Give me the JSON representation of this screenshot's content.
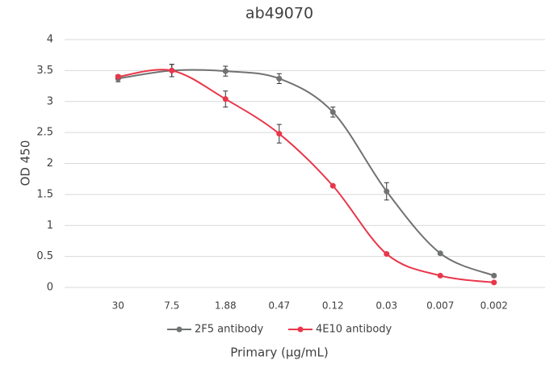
{
  "chart_data": {
    "type": "line",
    "title": "ab49070",
    "x_label": "Primary (µg/mL)",
    "y_label": "OD 450",
    "categories": [
      "30",
      "7.5",
      "1.88",
      "0.47",
      "0.12",
      "0.03",
      "0.007",
      "0.002"
    ],
    "series": [
      {
        "name": "2F5 antibody",
        "color": "#707372",
        "values": [
          3.37,
          3.5,
          3.49,
          3.37,
          2.83,
          1.55,
          0.55,
          0.19
        ],
        "errors": [
          0.05,
          0.1,
          0.08,
          0.08,
          0.08,
          0.14,
          0.02,
          0.02
        ]
      },
      {
        "name": "4E10 antibody",
        "color": "#e8374a",
        "values": [
          3.4,
          3.5,
          3.04,
          2.48,
          1.64,
          0.54,
          0.19,
          0.08
        ],
        "errors": [
          0.03,
          0.1,
          0.13,
          0.15,
          0.02,
          0.02,
          0.02,
          0.02
        ]
      }
    ],
    "ylim": [
      0,
      4
    ],
    "yticks": [
      0,
      0.5,
      1,
      1.5,
      2,
      2.5,
      3,
      3.5,
      4
    ],
    "grid": true,
    "smooth": true,
    "legend": "bottom"
  }
}
